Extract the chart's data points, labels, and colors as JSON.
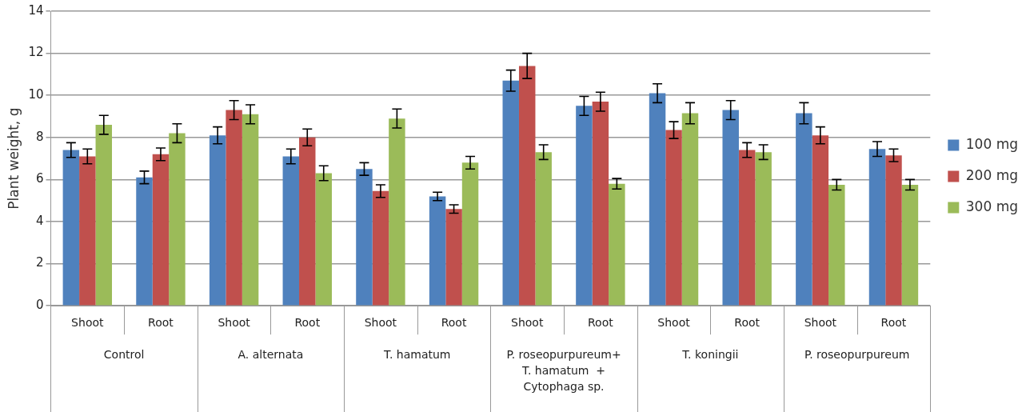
{
  "chart_data": {
    "type": "bar",
    "ylabel": "Plant weight, g",
    "categories": [
      "Shoot",
      "Root",
      "Shoot",
      "Root",
      "Shoot",
      "Root",
      "Shoot",
      "Root",
      "Shoot",
      "Root",
      "Shoot",
      "Root"
    ],
    "annotations": [
      "Control",
      "A. alternata",
      "T. hamatum",
      "P. roseopurpureum+\nT. hamatum  +\nCytophaga sp.",
      "T. koningii",
      "P. roseopurpureum"
    ],
    "series": [
      {
        "name": "100 mg",
        "color": "#4f81bd",
        "values": [
          7.4,
          6.1,
          8.1,
          7.1,
          6.5,
          5.2,
          10.7,
          9.5,
          10.1,
          9.3,
          9.15,
          7.45
        ],
        "errors": [
          0.35,
          0.3,
          0.4,
          0.35,
          0.3,
          0.2,
          0.5,
          0.45,
          0.45,
          0.45,
          0.5,
          0.35
        ]
      },
      {
        "name": "200 mg",
        "color": "#c0504d",
        "values": [
          7.1,
          7.2,
          9.3,
          8.0,
          5.45,
          4.6,
          11.4,
          9.7,
          8.35,
          7.4,
          8.1,
          7.15
        ],
        "errors": [
          0.35,
          0.3,
          0.45,
          0.4,
          0.3,
          0.2,
          0.6,
          0.45,
          0.4,
          0.35,
          0.4,
          0.3
        ]
      },
      {
        "name": "300 mg",
        "color": "#9bbb59",
        "values": [
          8.6,
          8.2,
          9.1,
          6.3,
          8.9,
          6.8,
          7.3,
          5.8,
          9.15,
          7.3,
          5.75,
          5.75
        ],
        "errors": [
          0.45,
          0.45,
          0.45,
          0.35,
          0.45,
          0.3,
          0.35,
          0.25,
          0.5,
          0.35,
          0.25,
          0.25
        ]
      }
    ],
    "ylim": [
      0,
      14
    ],
    "yticks": [
      0,
      2,
      4,
      6,
      8,
      10,
      12,
      14
    ],
    "grid": "y",
    "legend": "right"
  }
}
